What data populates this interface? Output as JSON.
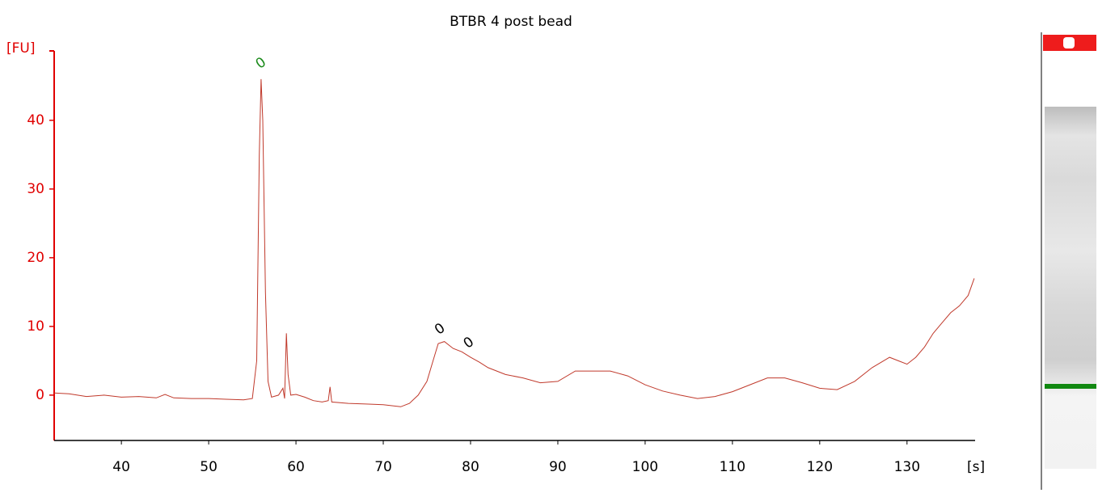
{
  "chart_data": {
    "type": "line",
    "title": "BTBR 4 post bead",
    "ylabel": "[FU]",
    "xlabel": "[s]",
    "color": "#c0392b",
    "axis_color": "#e00000",
    "xlim": [
      32.3,
      137.8
    ],
    "xticks": [
      40,
      50,
      60,
      70,
      80,
      90,
      100,
      110,
      120,
      130
    ],
    "ylim": [
      -6.6,
      50.1
    ],
    "yticks": [
      0,
      10,
      20,
      30,
      40
    ],
    "x": [
      32.3,
      34,
      36,
      38,
      40,
      42,
      44,
      45,
      46,
      48,
      50,
      52,
      54,
      55,
      55.5,
      55.8,
      56,
      56.2,
      56.5,
      56.8,
      57.2,
      58,
      58.5,
      58.7,
      58.9,
      59.1,
      59.4,
      60,
      61,
      62,
      63,
      63.7,
      63.9,
      64.1,
      66,
      68,
      70,
      72,
      73,
      74,
      75,
      75.7,
      76.3,
      77,
      78,
      79,
      80,
      81,
      82,
      84,
      86,
      88,
      90,
      92,
      94,
      96,
      98,
      100,
      102,
      104,
      106,
      108,
      110,
      112,
      114,
      116,
      118,
      120,
      122,
      124,
      126,
      128,
      129,
      130,
      131,
      132,
      133,
      134,
      135,
      136,
      137,
      137.7
    ],
    "values": [
      0.3,
      0.2,
      -0.2,
      0,
      -0.3,
      -0.2,
      -0.4,
      0.1,
      -0.4,
      -0.5,
      -0.5,
      -0.6,
      -0.7,
      -0.5,
      5,
      35,
      46,
      40,
      15,
      2,
      -0.3,
      0,
      1,
      -0.5,
      9,
      3,
      0,
      0.1,
      -0.3,
      -0.8,
      -1,
      -0.8,
      1.2,
      -1,
      -1.2,
      -1.3,
      -1.4,
      -1.7,
      -1.2,
      0,
      2,
      5,
      7.5,
      7.8,
      6.8,
      6.3,
      5.5,
      4.8,
      4,
      3,
      2.5,
      1.8,
      2,
      3.5,
      3.5,
      3.5,
      2.8,
      1.5,
      0.6,
      0,
      -0.5,
      -0.2,
      0.5,
      1.5,
      2.5,
      2.5,
      1.8,
      1,
      0.8,
      2,
      4,
      5.5,
      5,
      4.5,
      5.5,
      7,
      9,
      10.5,
      12,
      13,
      14.5,
      17
    ],
    "annotations": [
      {
        "text": "0",
        "x": 56,
        "y": 48.3,
        "color": "#1a8a1a"
      },
      {
        "text": "0",
        "x": 76.5,
        "y": 9.6,
        "color": "#000000"
      },
      {
        "text": "0",
        "x": 79.8,
        "y": 7.6,
        "color": "#000000"
      }
    ]
  }
}
